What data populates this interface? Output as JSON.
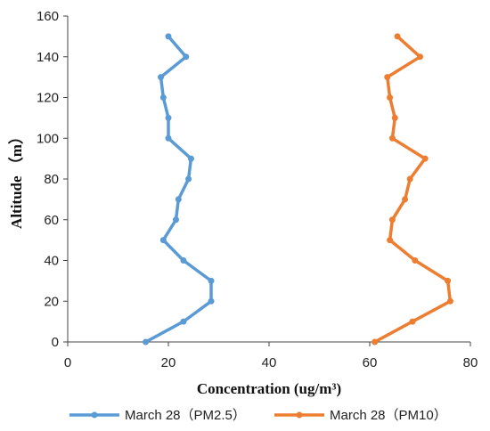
{
  "chart_data": {
    "type": "line",
    "xlabel": "Concentration (ug/m³)",
    "ylabel": "Altitude （m）",
    "xlim": [
      0,
      80
    ],
    "ylim": [
      0,
      160
    ],
    "xticks": [
      0,
      20,
      40,
      60,
      80
    ],
    "yticks": [
      0,
      20,
      40,
      60,
      80,
      100,
      120,
      140,
      160
    ],
    "grid": false,
    "legend_position": "bottom",
    "series": [
      {
        "name": "March 28（PM2.5）",
        "color": "#5B9BD5",
        "points": [
          [
            15.5,
            0
          ],
          [
            23,
            10
          ],
          [
            28.5,
            20
          ],
          [
            28.5,
            30
          ],
          [
            23,
            40
          ],
          [
            19,
            50
          ],
          [
            21.5,
            60
          ],
          [
            22,
            70
          ],
          [
            24,
            80
          ],
          [
            24.5,
            90
          ],
          [
            20,
            100
          ],
          [
            20,
            110
          ],
          [
            19,
            120
          ],
          [
            18.5,
            130
          ],
          [
            23.5,
            140
          ],
          [
            20,
            150
          ]
        ]
      },
      {
        "name": "March 28（PM10）",
        "color": "#ED7D31",
        "points": [
          [
            61,
            0
          ],
          [
            68.5,
            10
          ],
          [
            76,
            20
          ],
          [
            75.5,
            30
          ],
          [
            69,
            40
          ],
          [
            64,
            50
          ],
          [
            64.5,
            60
          ],
          [
            67,
            70
          ],
          [
            68,
            80
          ],
          [
            71,
            90
          ],
          [
            64.5,
            100
          ],
          [
            65,
            110
          ],
          [
            64,
            120
          ],
          [
            63.5,
            130
          ],
          [
            70,
            140
          ],
          [
            65.5,
            150
          ]
        ]
      }
    ]
  }
}
